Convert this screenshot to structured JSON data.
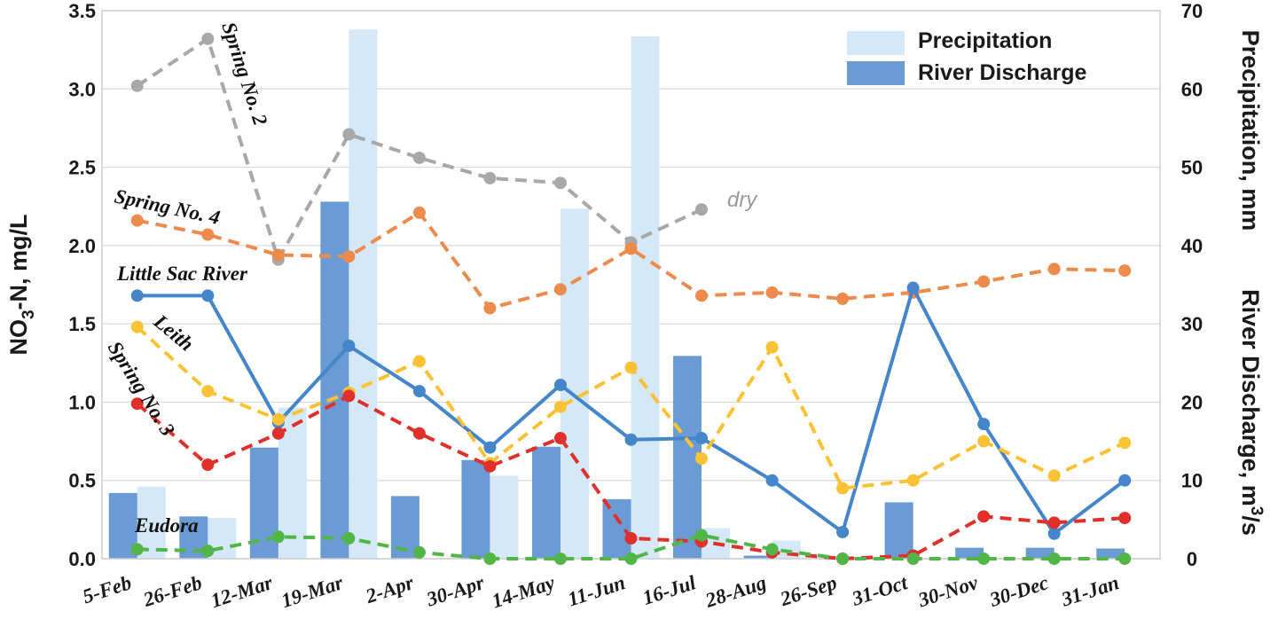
{
  "chart_data": {
    "type": "bar+line",
    "categories": [
      "5-Feb",
      "26-Feb",
      "12-Mar",
      "19-Mar",
      "2-Apr",
      "30-Apr",
      "14-May",
      "11-Jun",
      "16-Jul",
      "28-Aug",
      "26-Sep",
      "31-Oct",
      "30-Nov",
      "30-Dec",
      "31-Jan"
    ],
    "left_axis": {
      "label": "NO3-N,  mg/L",
      "label_main": "NO",
      "label_sub": "3",
      "label_rest": "-N,  mg/L",
      "range": [
        0,
        3.5
      ],
      "ticks": [
        "0.0",
        "0.5",
        "1.0",
        "1.5",
        "2.0",
        "2.5",
        "3.0",
        "3.5"
      ]
    },
    "right_axis": {
      "label_top": "Precipitation, mm",
      "label_bottom": "River Discharge, m3/s",
      "label_bottom_main": "River Discharge, m",
      "label_bottom_sup": "3",
      "label_bottom_rest": "/s",
      "range": [
        0,
        70
      ],
      "ticks": [
        "0",
        "10",
        "20",
        "30",
        "40",
        "50",
        "60",
        "70"
      ]
    },
    "bars": [
      {
        "name": "Precipitation",
        "axis": "right",
        "color": "#d4e8f7",
        "values": [
          9.2,
          5.2,
          19.3,
          67.6,
          0,
          10.6,
          44.7,
          66.7,
          3.9,
          2.3,
          0,
          0,
          0,
          0,
          0
        ]
      },
      {
        "name": "River Discharge",
        "axis": "right",
        "color": "#6a9bd4",
        "values": [
          8.4,
          5.4,
          14.2,
          45.6,
          8.0,
          12.6,
          14.3,
          7.6,
          25.9,
          0.4,
          0,
          7.2,
          1.4,
          1.4,
          1.3
        ]
      }
    ],
    "series": [
      {
        "name": "Spring No. 2",
        "label": "Spring No. 2",
        "axis": "left",
        "color": "#a8a8a8",
        "style": "dashed",
        "values": [
          3.02,
          3.32,
          1.91,
          2.71,
          2.56,
          2.43,
          2.4,
          2.02,
          2.23,
          null,
          null,
          null,
          null,
          null,
          null
        ]
      },
      {
        "name": "Spring No. 4",
        "label": "Spring No. 4",
        "axis": "left",
        "color": "#ed8b4d",
        "style": "dashed",
        "values": [
          2.16,
          2.07,
          1.94,
          1.93,
          2.21,
          1.6,
          1.72,
          1.98,
          1.68,
          1.7,
          1.66,
          1.7,
          1.77,
          1.85,
          1.84
        ]
      },
      {
        "name": "Little Sac River",
        "label": "Little Sac  River",
        "axis": "left",
        "color": "#4585c9",
        "style": "solid",
        "values": [
          1.68,
          1.68,
          0.87,
          1.36,
          1.07,
          0.71,
          1.11,
          0.76,
          0.77,
          0.5,
          0.17,
          1.73,
          0.86,
          0.16,
          0.5
        ]
      },
      {
        "name": "Leith",
        "label": "Leith",
        "axis": "left",
        "color": "#fcc235",
        "style": "dashed",
        "values": [
          1.48,
          1.07,
          0.89,
          1.06,
          1.26,
          0.61,
          0.97,
          1.22,
          0.64,
          1.35,
          0.45,
          0.5,
          0.75,
          0.53,
          0.74
        ]
      },
      {
        "name": "Spring No. 3",
        "label": "Spring No. 3",
        "axis": "left",
        "color": "#e0302c",
        "style": "dashed",
        "values": [
          0.99,
          0.6,
          0.8,
          1.04,
          0.8,
          0.59,
          0.77,
          0.13,
          0.11,
          0.04,
          0.0,
          0.02,
          0.27,
          0.23,
          0.26
        ]
      },
      {
        "name": "Eudora",
        "label": "Eudora",
        "axis": "left",
        "color": "#52b548",
        "style": "dashed",
        "values": [
          0.06,
          0.05,
          0.14,
          0.13,
          0.04,
          0.0,
          0.0,
          0.0,
          0.15,
          0.06,
          0.0,
          0.0,
          0.0,
          0.0,
          0.0
        ]
      }
    ],
    "annotations": [
      {
        "text": "dry",
        "series": "Spring No. 2"
      }
    ],
    "legend": {
      "position": "top-right",
      "entries": [
        "Precipitation",
        "River Discharge"
      ]
    }
  }
}
